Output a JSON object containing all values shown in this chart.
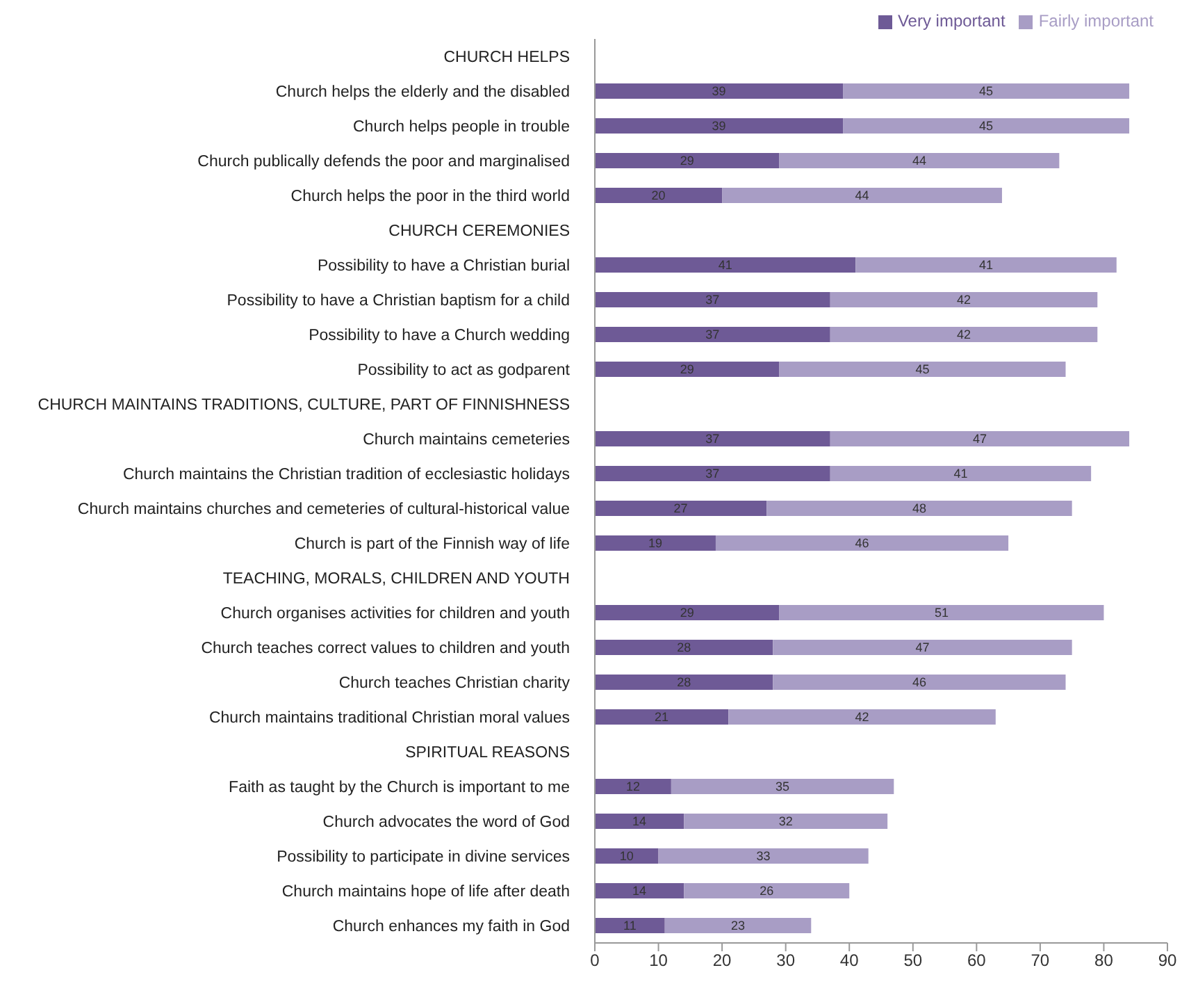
{
  "chart_data": {
    "type": "bar",
    "orientation": "horizontal",
    "stacked": true,
    "categories": [
      "CHURCH HELPS",
      "Church helps the elderly and the disabled",
      "Church helps people in trouble",
      "Church publically defends the poor and marginalised",
      "Church helps the poor in the third world",
      "CHURCH CEREMONIES",
      "Possibility to have a Christian burial",
      "Possibility to have a Christian baptism for a child",
      "Possibility to have a Church wedding",
      "Possibility to act as godparent",
      "CHURCH MAINTAINS TRADITIONS, CULTURE, PART OF FINNISHNESS",
      "Church maintains cemeteries",
      "Church maintains the Christian tradition of ecclesiastic holidays",
      "Church maintains churches and cemeteries of cultural-historical value",
      "Church is part of the Finnish way of life",
      "TEACHING, MORALS, CHILDREN AND YOUTH",
      "Church organises activities for children and youth",
      "Church teaches correct values to children and youth",
      "Church teaches Christian charity",
      "Church maintains traditional Christian moral values",
      "SPIRITUAL REASONS",
      "Faith as taught by the Church is important to me",
      "Church advocates the word of God",
      "Possibility to participate in divine services",
      "Church maintains hope of life after death",
      "Church enhances my faith in God"
    ],
    "series": [
      {
        "name": "Very important",
        "color": "#6e5a96",
        "values": [
          null,
          39,
          39,
          29,
          20,
          null,
          41,
          37,
          37,
          29,
          null,
          37,
          37,
          27,
          19,
          null,
          29,
          28,
          28,
          21,
          null,
          12,
          14,
          10,
          14,
          11
        ]
      },
      {
        "name": "Fairly important",
        "color": "#a89dc5",
        "values": [
          null,
          45,
          45,
          44,
          44,
          null,
          41,
          42,
          42,
          45,
          null,
          47,
          41,
          48,
          46,
          null,
          51,
          47,
          46,
          42,
          null,
          35,
          32,
          33,
          26,
          23
        ]
      }
    ],
    "xlim": [
      0,
      90
    ],
    "xticks": [
      0,
      10,
      20,
      30,
      40,
      50,
      60,
      70,
      80,
      90
    ],
    "data_labels": true,
    "legend": "top right",
    "grid": false
  }
}
